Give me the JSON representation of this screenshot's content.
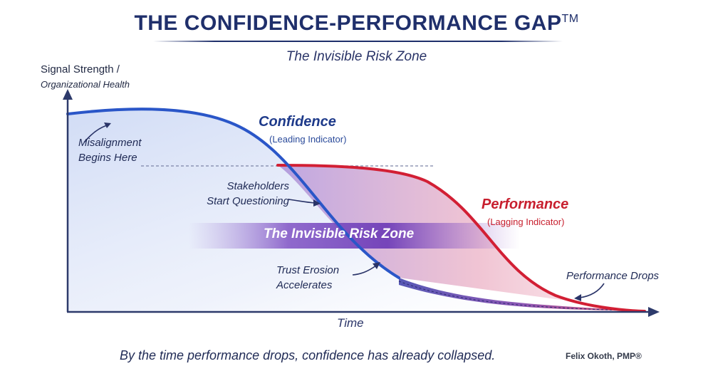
{
  "header": {
    "title": "THE CONFIDENCE-PERFORMANCE GAP",
    "trademark": "TM",
    "subtitle": "The Invisible Risk Zone"
  },
  "axes": {
    "y_label_line1": "Signal Strength /",
    "y_label_line2": "Organizational Health",
    "x_label": "Time"
  },
  "series": {
    "confidence": {
      "name": "Confidence",
      "note": "(Leading Indicator)",
      "color": "#2a56c8"
    },
    "performance": {
      "name": "Performance",
      "note": "(Lagging Indicator)",
      "color": "#d21f34"
    }
  },
  "zone": {
    "label": "The Invisible Risk Zone",
    "color": "#6b36b8"
  },
  "annotations": {
    "misalignment": [
      "Misalignment",
      "Begins Here"
    ],
    "stakeholders": [
      "Stakeholders",
      "Start Questioning"
    ],
    "trust": [
      "Trust Erosion",
      "Accelerates"
    ],
    "performance_drops": "Performance Drops"
  },
  "footer": {
    "caption": "By the time performance drops, confidence has already collapsed.",
    "author": "Felix Okoth, PMP®"
  }
}
